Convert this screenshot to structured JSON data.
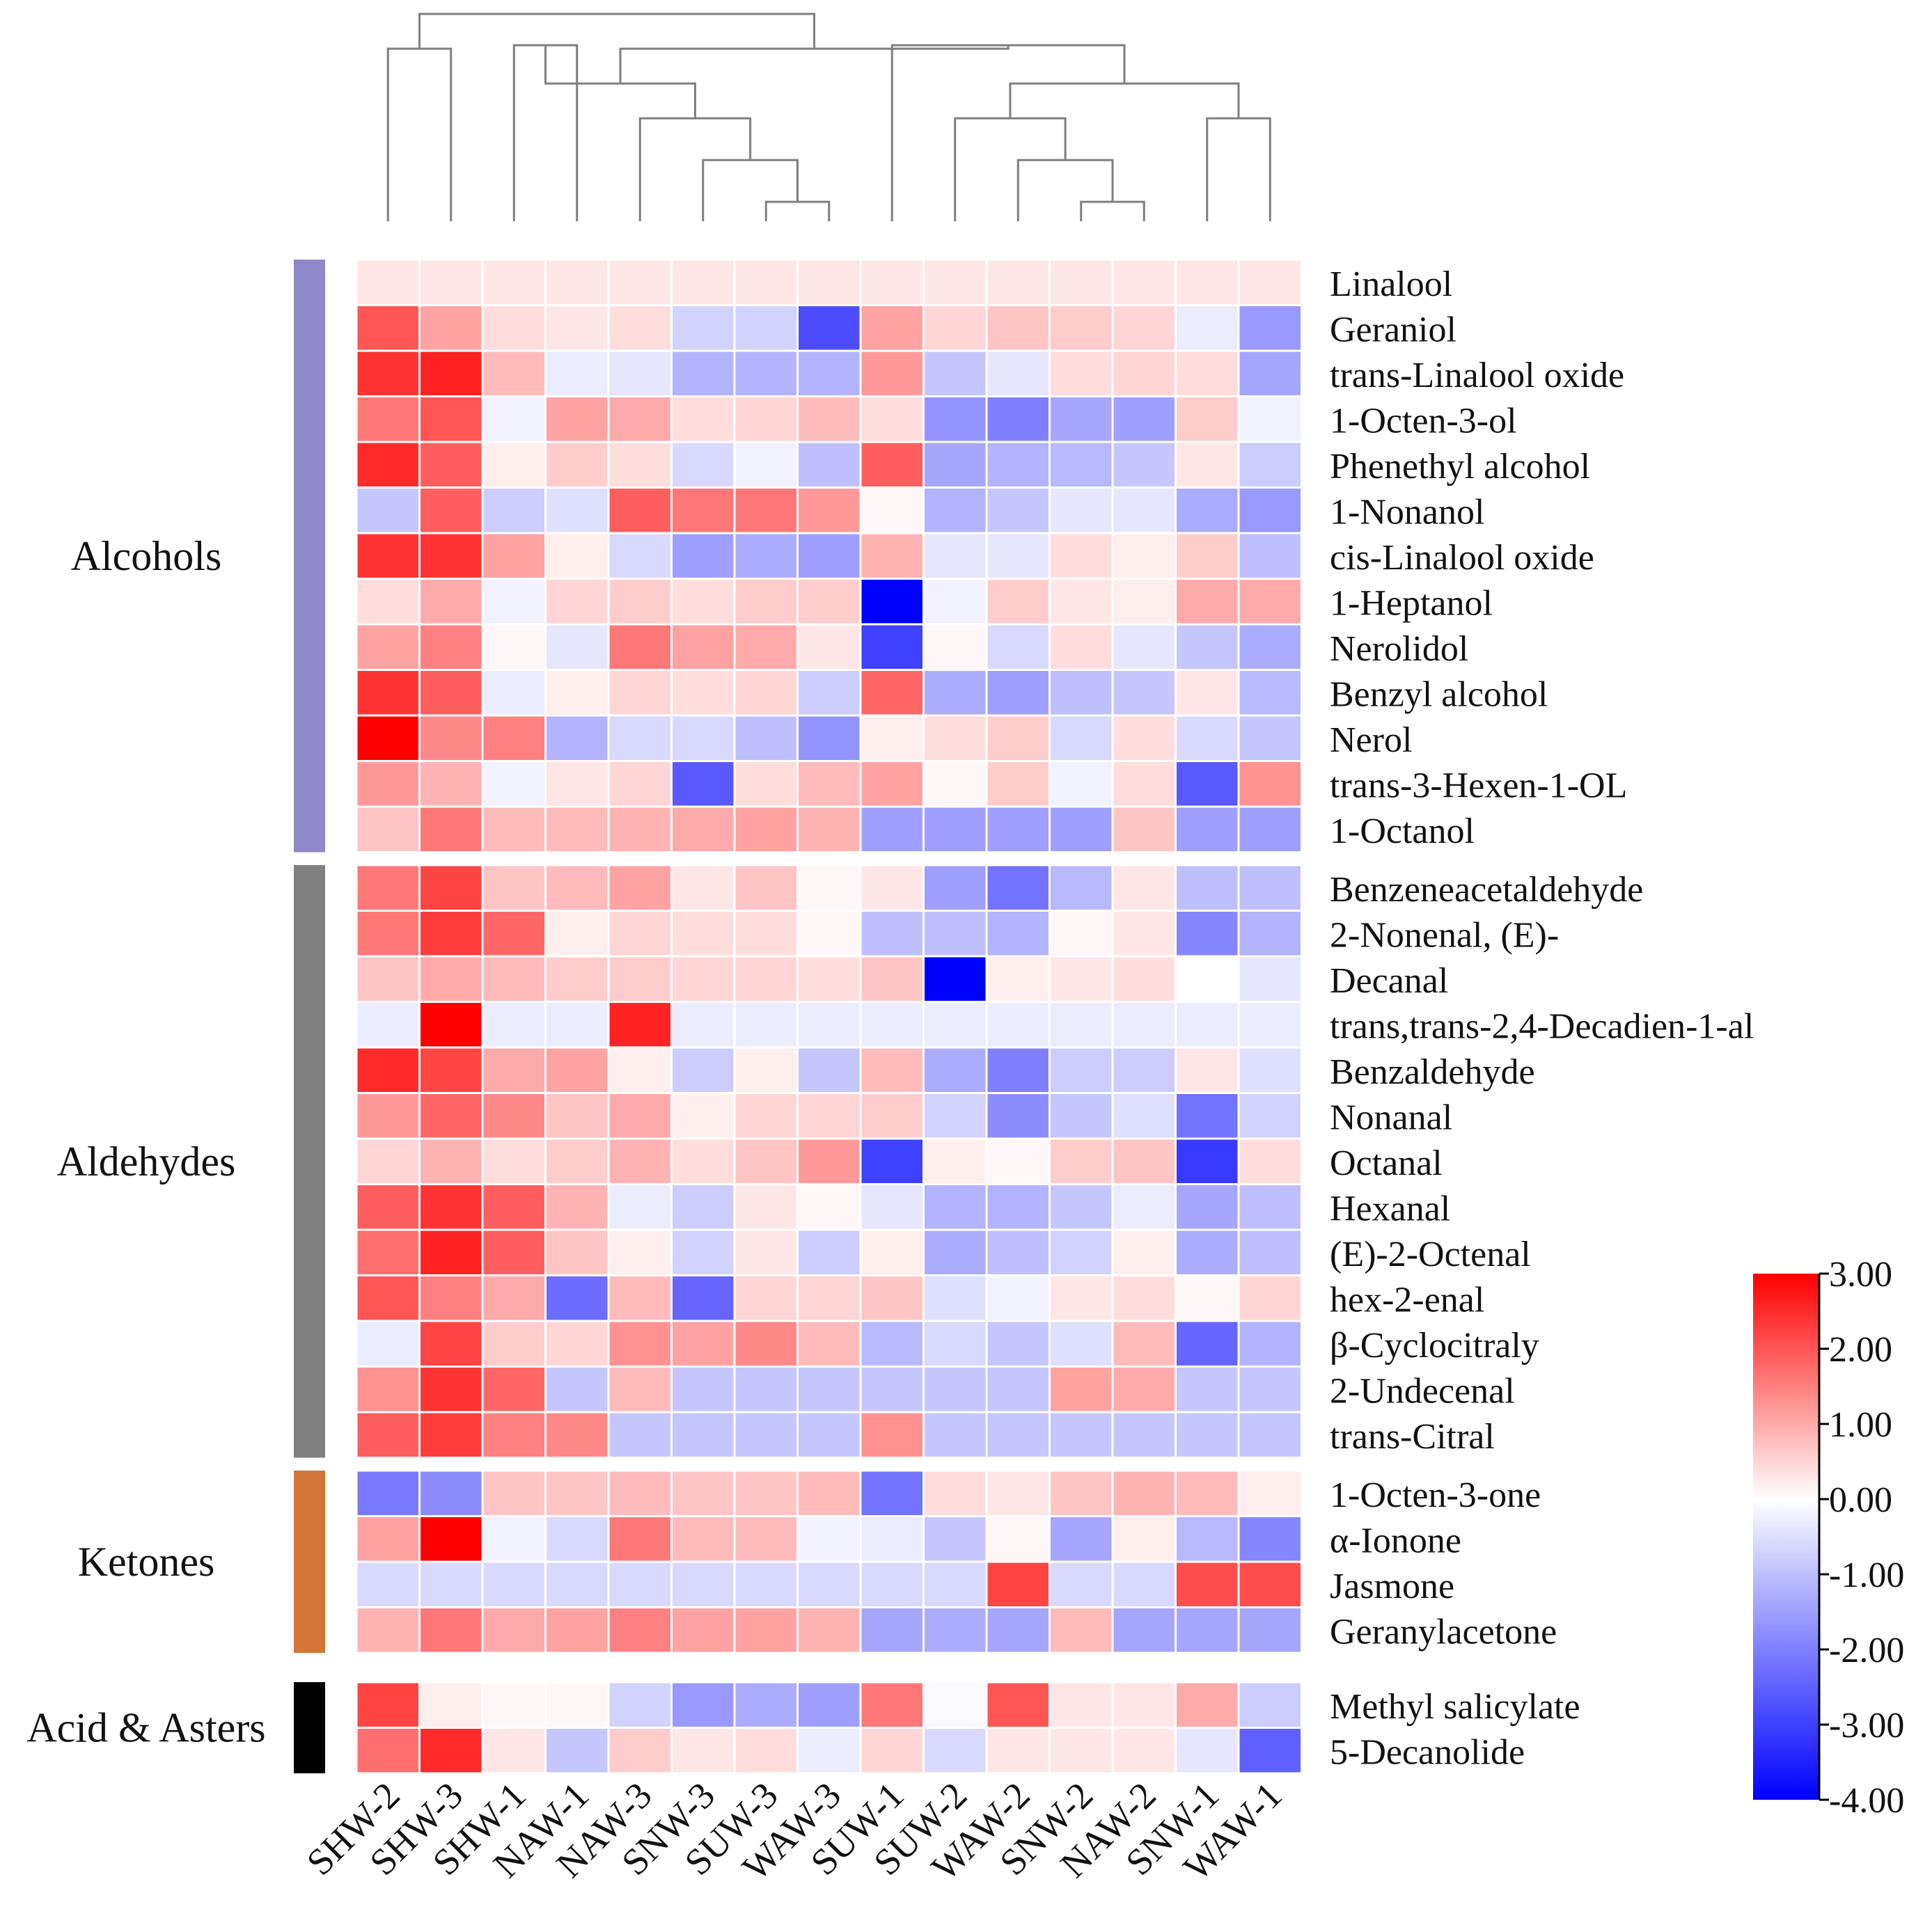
{
  "chart_data": {
    "type": "heatmap",
    "title": "",
    "columns": [
      "SHW-2",
      "SHW-3",
      "SHW-1",
      "NAW-1",
      "NAW-3",
      "SNW-3",
      "SUW-3",
      "WAW-3",
      "SUW-1",
      "SUW-2",
      "WAW-2",
      "SNW-2",
      "NAW-2",
      "SNW-1",
      "WAW-1"
    ],
    "groups": [
      {
        "name": "Alcohols",
        "color": "#8f88c8",
        "rows": [
          {
            "name": "Linalool",
            "values": [
              0.3,
              0.3,
              0.3,
              0.3,
              0.3,
              0.3,
              0.3,
              0.3,
              0.3,
              0.3,
              0.3,
              0.3,
              0.3,
              0.3,
              0.3
            ]
          },
          {
            "name": "Geraniol",
            "values": [
              2.0,
              1.1,
              0.4,
              0.3,
              0.4,
              -0.7,
              -0.7,
              -2.8,
              1.1,
              0.5,
              0.7,
              0.6,
              0.5,
              -0.3,
              -1.6
            ]
          },
          {
            "name": "trans-Linalool oxide",
            "values": [
              2.4,
              2.6,
              0.8,
              -0.3,
              -0.4,
              -1.2,
              -1.2,
              -1.2,
              1.2,
              -0.9,
              -0.4,
              0.4,
              0.5,
              0.4,
              -1.4
            ]
          },
          {
            "name": "1-Octen-3-ol",
            "values": [
              1.6,
              2.0,
              -0.2,
              1.1,
              1.0,
              0.4,
              0.5,
              0.8,
              0.4,
              -1.7,
              -2.0,
              -1.4,
              -1.5,
              0.6,
              -0.2
            ]
          },
          {
            "name": "Phenethyl alcohol",
            "values": [
              2.5,
              1.9,
              0.2,
              0.6,
              0.4,
              -0.6,
              -0.2,
              -1.0,
              1.9,
              -1.4,
              -1.2,
              -1.1,
              -0.9,
              0.3,
              -0.8
            ]
          },
          {
            "name": "1-Nonanol",
            "values": [
              -0.9,
              1.9,
              -0.8,
              -0.5,
              1.9,
              1.6,
              1.6,
              1.2,
              0.1,
              -1.2,
              -0.9,
              -0.4,
              -0.4,
              -1.3,
              -1.6
            ]
          },
          {
            "name": "cis-Linalool oxide",
            "values": [
              2.4,
              2.4,
              1.1,
              0.2,
              -0.6,
              -1.5,
              -1.3,
              -1.5,
              0.9,
              -0.4,
              -0.4,
              0.4,
              0.2,
              0.6,
              -1.0
            ]
          },
          {
            "name": "1-Heptanol",
            "values": [
              0.4,
              1.0,
              -0.2,
              0.5,
              0.6,
              0.4,
              0.6,
              0.6,
              -4.0,
              -0.2,
              0.6,
              0.3,
              0.2,
              1.0,
              1.0
            ]
          },
          {
            "name": "Nerolidol",
            "values": [
              1.1,
              1.5,
              0.1,
              -0.4,
              1.6,
              1.1,
              1.0,
              0.3,
              -3.0,
              0.1,
              -0.6,
              0.4,
              -0.4,
              -0.9,
              -1.3
            ]
          },
          {
            "name": "Benzyl alcohol",
            "values": [
              2.4,
              1.9,
              -0.3,
              0.2,
              0.5,
              0.4,
              0.5,
              -0.8,
              1.8,
              -1.3,
              -1.5,
              -1.0,
              -0.9,
              0.3,
              -1.1
            ]
          },
          {
            "name": "Nerol",
            "values": [
              3.0,
              1.4,
              1.5,
              -1.2,
              -0.6,
              -0.6,
              -1.0,
              -1.7,
              0.2,
              0.4,
              0.6,
              -0.6,
              0.4,
              -0.6,
              -0.9
            ]
          },
          {
            "name": "trans-3-Hexen-1-OL",
            "values": [
              1.2,
              0.9,
              -0.2,
              0.3,
              0.5,
              -2.6,
              0.4,
              0.8,
              1.1,
              0.1,
              0.6,
              -0.2,
              0.4,
              -2.6,
              1.3
            ]
          },
          {
            "name": "1-Octanol",
            "values": [
              0.7,
              1.6,
              0.8,
              0.8,
              0.9,
              1.0,
              1.1,
              0.9,
              -1.5,
              -1.5,
              -1.5,
              -1.5,
              0.7,
              -1.5,
              -1.5
            ]
          }
        ]
      },
      {
        "name": "Aldehydes",
        "color": "#808080",
        "rows": [
          {
            "name": "Benzeneacetaldehyde",
            "values": [
              1.6,
              2.2,
              0.7,
              0.8,
              1.1,
              0.3,
              0.7,
              0.1,
              0.3,
              -1.5,
              -2.2,
              -1.1,
              0.3,
              -1.0,
              -1.0
            ]
          },
          {
            "name": "2-Nonenal, (E)-",
            "values": [
              1.6,
              2.3,
              1.8,
              0.2,
              0.5,
              0.4,
              0.4,
              0.1,
              -1.0,
              -1.0,
              -1.2,
              0.1,
              0.3,
              -1.9,
              -1.2
            ]
          },
          {
            "name": "Decanal",
            "values": [
              0.7,
              1.0,
              0.8,
              0.6,
              0.6,
              0.5,
              0.5,
              0.4,
              0.7,
              -4.0,
              0.2,
              0.3,
              0.4,
              0.0,
              -0.4
            ]
          },
          {
            "name": "trans,trans-2,4-Decadien-1-al",
            "values": [
              -0.3,
              3.0,
              -0.3,
              -0.3,
              2.6,
              -0.3,
              -0.3,
              -0.3,
              -0.3,
              -0.3,
              -0.3,
              -0.3,
              -0.3,
              -0.3,
              -0.3
            ]
          },
          {
            "name": "Benzaldehyde",
            "values": [
              2.5,
              2.2,
              1.0,
              1.1,
              0.2,
              -0.8,
              0.2,
              -0.9,
              0.8,
              -1.3,
              -2.0,
              -0.8,
              -0.8,
              0.3,
              -0.5
            ]
          },
          {
            "name": "Nonanal",
            "values": [
              1.2,
              1.8,
              1.4,
              0.7,
              1.0,
              0.2,
              0.5,
              0.5,
              0.6,
              -0.7,
              -1.8,
              -0.9,
              -0.5,
              -2.2,
              -0.7
            ]
          },
          {
            "name": "Octanal",
            "values": [
              0.5,
              0.9,
              0.4,
              0.6,
              0.9,
              0.4,
              0.7,
              1.2,
              -3.0,
              0.2,
              0.1,
              0.6,
              0.7,
              -3.1,
              0.4
            ]
          },
          {
            "name": "Hexanal",
            "values": [
              1.9,
              2.4,
              1.9,
              0.9,
              -0.3,
              -0.8,
              0.3,
              0.1,
              -0.4,
              -1.2,
              -1.2,
              -0.9,
              -0.3,
              -1.4,
              -1.0
            ]
          },
          {
            "name": "(E)-2-Octenal",
            "values": [
              1.7,
              2.6,
              1.9,
              0.7,
              0.2,
              -0.7,
              0.3,
              -0.8,
              0.2,
              -1.3,
              -1.0,
              -0.7,
              0.2,
              -1.3,
              -1.0
            ]
          },
          {
            "name": "hex-2-enal",
            "values": [
              2.0,
              1.5,
              1.0,
              -2.3,
              0.8,
              -2.4,
              0.5,
              0.5,
              0.7,
              -0.5,
              -0.2,
              0.3,
              0.4,
              0.1,
              0.5
            ]
          },
          {
            "name": "β-Cyclocitraly",
            "values": [
              -0.3,
              2.2,
              0.6,
              0.5,
              1.3,
              1.1,
              1.4,
              0.8,
              -1.1,
              -0.6,
              -0.9,
              -0.5,
              0.8,
              -2.4,
              -1.2
            ]
          },
          {
            "name": "2-Undecenal",
            "values": [
              1.3,
              2.4,
              1.8,
              -0.9,
              0.8,
              -0.9,
              -0.9,
              -0.9,
              -0.9,
              -0.9,
              -0.9,
              1.1,
              1.0,
              -0.9,
              -0.9
            ]
          },
          {
            "name": "trans-Citral",
            "values": [
              1.9,
              2.3,
              1.5,
              1.4,
              -0.9,
              -0.9,
              -0.9,
              -0.9,
              1.3,
              -0.9,
              -0.9,
              -0.9,
              -0.9,
              -0.9,
              -0.9
            ]
          }
        ]
      },
      {
        "name": "Ketones",
        "color": "#d4763a",
        "rows": [
          {
            "name": "1-Octen-3-one",
            "values": [
              -2.1,
              -1.8,
              0.7,
              0.7,
              0.8,
              0.7,
              0.7,
              0.8,
              -2.2,
              0.4,
              0.3,
              0.7,
              0.9,
              0.8,
              0.2
            ]
          },
          {
            "name": "α-Ionone",
            "values": [
              1.1,
              3.0,
              -0.2,
              -0.6,
              1.6,
              0.8,
              0.8,
              -0.2,
              -0.3,
              -0.9,
              0.1,
              -1.4,
              0.2,
              -1.1,
              -1.9
            ]
          },
          {
            "name": "Jasmone",
            "values": [
              -0.6,
              -0.6,
              -0.6,
              -0.6,
              -0.6,
              -0.6,
              -0.6,
              -0.6,
              -0.6,
              -0.6,
              2.2,
              -0.6,
              -0.6,
              2.1,
              2.1
            ]
          },
          {
            "name": "Geranylacetone",
            "values": [
              0.9,
              1.6,
              1.0,
              1.1,
              1.5,
              1.1,
              1.1,
              0.9,
              -1.4,
              -1.3,
              -1.4,
              0.8,
              -1.4,
              -1.4,
              -1.4
            ]
          }
        ]
      },
      {
        "name": "Acid & Asters",
        "color": "#000000",
        "rows": [
          {
            "name": "Methyl salicylate",
            "values": [
              2.2,
              0.2,
              0.1,
              0.1,
              -0.7,
              -1.6,
              -1.3,
              -1.5,
              1.6,
              -0.1,
              2.0,
              0.3,
              0.3,
              1.0,
              -0.8
            ]
          },
          {
            "name": "5-Decanolide",
            "values": [
              1.7,
              2.5,
              0.3,
              -0.9,
              0.6,
              0.3,
              0.4,
              -0.3,
              0.5,
              -0.6,
              0.3,
              0.3,
              0.3,
              -0.4,
              -2.5
            ]
          }
        ]
      }
    ],
    "colorbar": {
      "min": -4.0,
      "max": 3.0,
      "ticks": [
        "3.00",
        "2.00",
        "1.00",
        "0.00",
        "-1.00",
        "-2.00",
        "-3.00",
        "-4.00"
      ],
      "low_color": "#0000ff",
      "mid_color": "#ffffff",
      "high_color": "#ff0000"
    },
    "dendrogram": {
      "leaf_order": [
        "SHW-2",
        "SHW-3",
        "SHW-1",
        "NAW-1",
        "NAW-3",
        "SNW-3",
        "SUW-3",
        "WAW-3",
        "SUW-1",
        "SUW-2",
        "WAW-2",
        "SNW-2",
        "NAW-2",
        "SNW-1",
        "WAW-1"
      ],
      "merges": [
        [
          0,
          1,
          6
        ],
        [
          2,
          3,
          5
        ],
        [
          6,
          7,
          1
        ],
        [
          5,
          17,
          2
        ],
        [
          4,
          18,
          3
        ],
        [
          16,
          19,
          4
        ],
        [
          11,
          12,
          1
        ],
        [
          10,
          21,
          2
        ],
        [
          9,
          22,
          3
        ],
        [
          13,
          14,
          3
        ],
        [
          23,
          24,
          4
        ],
        [
          8,
          25,
          5
        ],
        [
          20,
          26,
          6
        ],
        [
          15,
          27,
          7
        ]
      ]
    }
  }
}
